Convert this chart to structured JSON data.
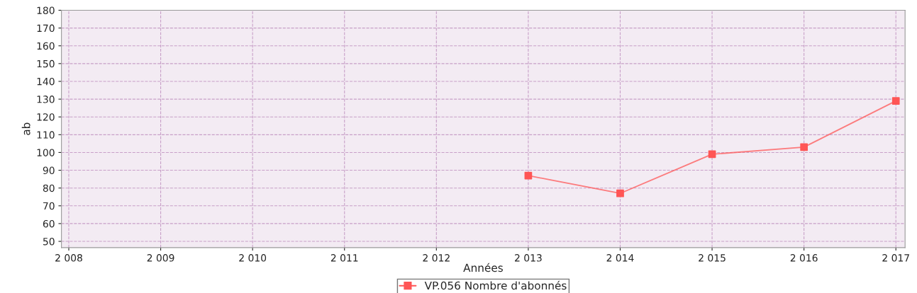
{
  "chart_data": {
    "type": "line",
    "xlabel": "Années",
    "ylabel": "ab",
    "x": [
      2013,
      2014,
      2015,
      2016,
      2017
    ],
    "series": [
      {
        "name": "VP.056 Nombre d'abonnés",
        "color": "#ff5555",
        "values": [
          87,
          77,
          99,
          103,
          129
        ]
      }
    ],
    "xlim": [
      2007.92,
      2017.1
    ],
    "ylim": [
      46.5,
      180
    ],
    "xticks": [
      {
        "value": 2008,
        "label": "2 008"
      },
      {
        "value": 2009,
        "label": "2 009"
      },
      {
        "value": 2010,
        "label": "2 010"
      },
      {
        "value": 2011,
        "label": "2 011"
      },
      {
        "value": 2012,
        "label": "2 012"
      },
      {
        "value": 2013,
        "label": "2 013"
      },
      {
        "value": 2014,
        "label": "2 014"
      },
      {
        "value": 2015,
        "label": "2 015"
      },
      {
        "value": 2016,
        "label": "2 016"
      },
      {
        "value": 2017,
        "label": "2 017"
      }
    ],
    "yticks": [
      50,
      60,
      70,
      80,
      90,
      100,
      110,
      120,
      130,
      140,
      150,
      160,
      170,
      180
    ],
    "grid": true,
    "legend": "bottom",
    "marker": "square",
    "line_style": "solid"
  }
}
